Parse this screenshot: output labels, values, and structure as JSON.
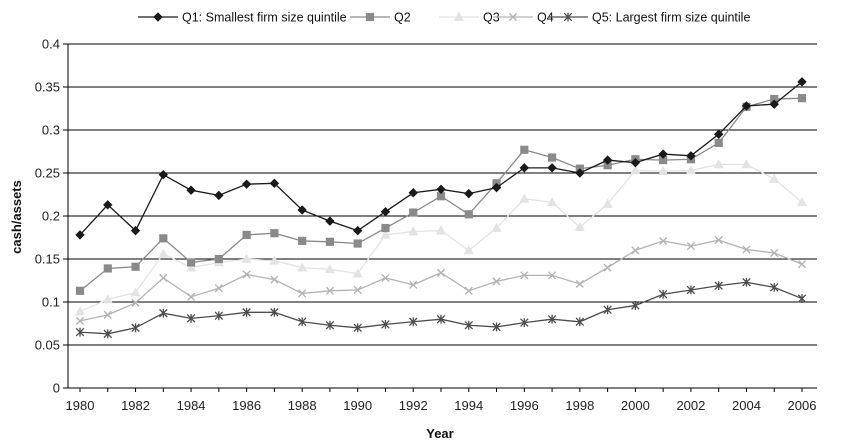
{
  "chart_data": {
    "type": "line",
    "title": "",
    "xlabel": "Year",
    "ylabel": "cash/assets",
    "xlim": [
      1980,
      2006
    ],
    "ylim": [
      0,
      0.4
    ],
    "yticks": [
      0,
      0.05,
      0.1,
      0.15,
      0.2,
      0.25,
      0.3,
      0.35,
      0.4
    ],
    "ytick_labels": [
      "0",
      "0.05",
      "0.1",
      "0.15",
      "0.2",
      "0.25",
      "0.3",
      "0.35",
      "0.4"
    ],
    "xticks": [
      1980,
      1982,
      1984,
      1986,
      1988,
      1990,
      1992,
      1994,
      1996,
      1998,
      2000,
      2002,
      2004,
      2006
    ],
    "xtick_labels": [
      "1980",
      "1982",
      "1984",
      "1986",
      "1988",
      "1990",
      "1992",
      "1994",
      "1996",
      "1998",
      "2000",
      "2002",
      "2004",
      "2006"
    ],
    "grid": "horizontal",
    "legend_position": "top",
    "x": [
      1980,
      1981,
      1982,
      1983,
      1984,
      1985,
      1986,
      1987,
      1988,
      1989,
      1990,
      1991,
      1992,
      1993,
      1994,
      1995,
      1996,
      1997,
      1998,
      1999,
      2000,
      2001,
      2002,
      2003,
      2004,
      2005,
      2006
    ],
    "series": [
      {
        "name": "Q1: Smallest firm size quintile",
        "marker": "diamond",
        "color": "#1a1a1a",
        "values": [
          0.178,
          0.213,
          0.183,
          0.248,
          0.23,
          0.224,
          0.237,
          0.238,
          0.207,
          0.194,
          0.183,
          0.205,
          0.227,
          0.231,
          0.226,
          0.233,
          0.256,
          0.256,
          0.25,
          0.265,
          0.262,
          0.272,
          0.27,
          0.295,
          0.328,
          0.33,
          0.356
        ]
      },
      {
        "name": "Q2",
        "marker": "square",
        "color": "#8a8a8a",
        "values": [
          0.113,
          0.139,
          0.141,
          0.174,
          0.146,
          0.15,
          0.178,
          0.18,
          0.171,
          0.17,
          0.168,
          0.186,
          0.204,
          0.223,
          0.202,
          0.238,
          0.277,
          0.268,
          0.255,
          0.259,
          0.266,
          0.265,
          0.266,
          0.285,
          0.327,
          0.336,
          0.337
        ]
      },
      {
        "name": "Q3",
        "marker": "triangle",
        "color": "#e3e3e3",
        "values": [
          0.089,
          0.103,
          0.111,
          0.156,
          0.14,
          0.146,
          0.15,
          0.148,
          0.14,
          0.138,
          0.133,
          0.178,
          0.182,
          0.183,
          0.16,
          0.186,
          0.22,
          0.216,
          0.187,
          0.214,
          0.253,
          0.252,
          0.253,
          0.26,
          0.26,
          0.243,
          0.216
        ]
      },
      {
        "name": "Q4",
        "marker": "x",
        "color": "#b3b3b3",
        "values": [
          0.078,
          0.085,
          0.099,
          0.128,
          0.106,
          0.116,
          0.132,
          0.126,
          0.11,
          0.113,
          0.114,
          0.128,
          0.12,
          0.134,
          0.113,
          0.124,
          0.131,
          0.131,
          0.121,
          0.14,
          0.16,
          0.171,
          0.165,
          0.172,
          0.161,
          0.157,
          0.144
        ]
      },
      {
        "name": "Q5: Largest firm size quintile",
        "marker": "asterisk",
        "color": "#4d4d4d",
        "values": [
          0.065,
          0.063,
          0.07,
          0.087,
          0.081,
          0.084,
          0.088,
          0.088,
          0.077,
          0.073,
          0.07,
          0.074,
          0.077,
          0.08,
          0.073,
          0.071,
          0.076,
          0.08,
          0.077,
          0.091,
          0.096,
          0.109,
          0.114,
          0.119,
          0.123,
          0.117,
          0.104
        ]
      }
    ]
  }
}
